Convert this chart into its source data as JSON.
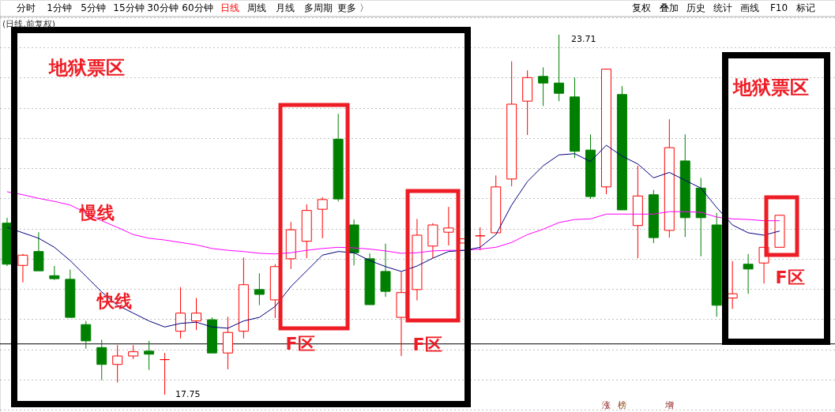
{
  "chart_data": {
    "type": "candlestick",
    "categories": [
      null,
      null,
      null,
      null,
      null,
      null,
      null,
      null,
      null,
      null,
      null,
      null,
      null,
      null,
      null,
      null,
      null,
      null,
      null,
      null,
      null,
      null,
      null,
      null,
      null,
      null,
      null,
      null,
      null,
      null,
      null,
      null,
      null,
      null,
      null,
      null,
      null,
      null,
      null,
      null,
      null,
      null,
      null,
      null,
      null,
      null,
      null,
      null,
      null,
      null
    ],
    "ohlc": [
      [
        20.59,
        20.68,
        19.88,
        19.91
      ],
      [
        19.89,
        20.08,
        19.61,
        20.06
      ],
      [
        20.12,
        20.44,
        19.8,
        19.8
      ],
      [
        19.72,
        19.88,
        19.65,
        19.67
      ],
      [
        19.66,
        19.82,
        19.02,
        19.03
      ],
      [
        18.91,
        18.97,
        18.51,
        18.64
      ],
      [
        18.53,
        18.66,
        17.99,
        18.25
      ],
      [
        18.25,
        18.57,
        17.95,
        18.39
      ],
      [
        18.39,
        18.57,
        18.34,
        18.46
      ],
      [
        18.47,
        18.64,
        18.16,
        18.42
      ],
      [
        18.33,
        18.44,
        17.75,
        18.33
      ],
      [
        18.8,
        19.53,
        18.68,
        19.1
      ],
      [
        18.97,
        19.35,
        18.82,
        19.1
      ],
      [
        18.99,
        19.03,
        18.44,
        18.44
      ],
      [
        18.44,
        19.04,
        18.17,
        18.78
      ],
      [
        18.8,
        20.02,
        18.68,
        19.57
      ],
      [
        19.49,
        19.76,
        19.23,
        19.41
      ],
      [
        19.32,
        19.91,
        19.02,
        19.87
      ],
      [
        20.0,
        20.61,
        19.83,
        20.48
      ],
      [
        20.29,
        20.9,
        20.01,
        20.8
      ],
      [
        20.82,
        21.02,
        20.34,
        20.98
      ],
      [
        21.98,
        22.4,
        20.95,
        20.99
      ],
      [
        20.56,
        20.65,
        19.89,
        20.1
      ],
      [
        20.0,
        20.09,
        19.24,
        19.24
      ],
      [
        19.79,
        20.25,
        19.37,
        19.46
      ],
      [
        19.03,
        19.78,
        18.39,
        19.44
      ],
      [
        19.49,
        20.66,
        19.31,
        20.39
      ],
      [
        20.21,
        20.59,
        20.01,
        20.56
      ],
      [
        20.44,
        20.86,
        20.22,
        20.51
      ],
      [
        20.26,
        20.33,
        20.26,
        20.33
      ],
      [
        20.38,
        20.52,
        20.14,
        20.38
      ],
      [
        20.43,
        21.38,
        20.43,
        21.19
      ],
      [
        21.32,
        23.27,
        21.2,
        22.56
      ],
      [
        22.61,
        23.12,
        22.05,
        23.0
      ],
      [
        23.02,
        23.17,
        22.53,
        22.91
      ],
      [
        22.91,
        23.71,
        22.61,
        22.74
      ],
      [
        22.68,
        23.0,
        21.67,
        21.78
      ],
      [
        21.8,
        22.06,
        20.99,
        21.03
      ],
      [
        21.19,
        23.14,
        21.07,
        23.14
      ],
      [
        22.72,
        22.86,
        20.81,
        20.81
      ],
      [
        20.55,
        21.54,
        20.01,
        21.04
      ],
      [
        21.06,
        21.14,
        20.26,
        20.35
      ],
      [
        20.47,
        22.31,
        20.35,
        21.84
      ],
      [
        21.62,
        22.06,
        20.36,
        20.68
      ],
      [
        21.17,
        21.34,
        20.04,
        20.68
      ],
      [
        20.56,
        20.76,
        19.04,
        19.23
      ],
      [
        19.35,
        19.96,
        19.17,
        19.42
      ],
      [
        19.91,
        20.08,
        19.42,
        19.83
      ],
      [
        19.93,
        20.19,
        19.59,
        20.19
      ],
      [
        20.19,
        20.72,
        20.19,
        20.72
      ]
    ],
    "colors": [
      "#008000",
      "#ff0000",
      "#008000",
      "#008000",
      "#008000",
      "#008000",
      "#008000",
      "#ff0000",
      "#ff0000",
      "#008000",
      "#ff0000",
      "#ff0000",
      "#ff0000",
      "#008000",
      "#ff0000",
      "#ff0000",
      "#008000",
      "#ff0000",
      "#ff0000",
      "#ff0000",
      "#ff0000",
      "#008000",
      "#008000",
      "#008000",
      "#008000",
      "#ff0000",
      "#ff0000",
      "#ff0000",
      "#ff0000",
      "#ff0000",
      "#ff0000",
      "#ff0000",
      "#ff0000",
      "#ff0000",
      "#008000",
      "#008000",
      "#008000",
      "#008000",
      "#ff0000",
      "#008000",
      "#ff0000",
      "#008000",
      "#ff0000",
      "#008000",
      "#008000",
      "#008000",
      "#ff0000",
      "#008000",
      "#ff0000",
      "#ff0000"
    ],
    "series": [
      {
        "name": "快线",
        "type": "line",
        "color": "#000080",
        "values": [
          20.52,
          20.43,
          20.34,
          20.19,
          19.97,
          19.71,
          19.45,
          19.23,
          19.1,
          18.97,
          18.87,
          18.93,
          18.95,
          18.87,
          18.85,
          18.97,
          19.03,
          19.21,
          19.54,
          19.8,
          20.06,
          20.12,
          20.1,
          19.97,
          19.87,
          19.79,
          19.88,
          20.01,
          20.12,
          20.14,
          20.19,
          20.4,
          20.89,
          21.28,
          21.54,
          21.72,
          21.74,
          21.61,
          21.88,
          21.7,
          21.57,
          21.34,
          21.43,
          21.3,
          21.17,
          20.85,
          20.56,
          20.43,
          20.39,
          20.46
        ]
      },
      {
        "name": "慢线",
        "type": "line",
        "color": "#ff00ff",
        "values": [
          21.11,
          21.06,
          21.0,
          20.95,
          20.89,
          20.76,
          20.63,
          20.52,
          20.4,
          20.34,
          20.31,
          20.27,
          20.23,
          20.17,
          20.14,
          20.12,
          20.09,
          20.08,
          20.1,
          20.14,
          20.17,
          20.19,
          20.18,
          20.16,
          20.13,
          20.09,
          20.1,
          20.13,
          20.14,
          20.14,
          20.16,
          20.19,
          20.27,
          20.4,
          20.49,
          20.6,
          20.65,
          20.66,
          20.74,
          20.74,
          20.74,
          20.74,
          20.78,
          20.78,
          20.77,
          20.69,
          20.66,
          20.65,
          20.63,
          20.63
        ]
      }
    ],
    "ref_lines": [
      {
        "axis": "y",
        "value": 18.59,
        "color": "#000000"
      }
    ],
    "grid": "y",
    "annotations": [
      "分时",
      "1分钟",
      "5分钟",
      "15分钟",
      "30分钟",
      "60分钟",
      "日线",
      "周线",
      "月线",
      "多周期",
      "更多 〉",
      "复权",
      "叠加",
      "历史",
      "统计",
      "画线",
      "F10",
      "标记",
      "(日线,前复权)",
      "地狱票区",
      "F区",
      "F区",
      "地狱票区",
      "F区",
      "23.71",
      "17.75",
      "涨",
      "榜",
      "增"
    ]
  }
}
